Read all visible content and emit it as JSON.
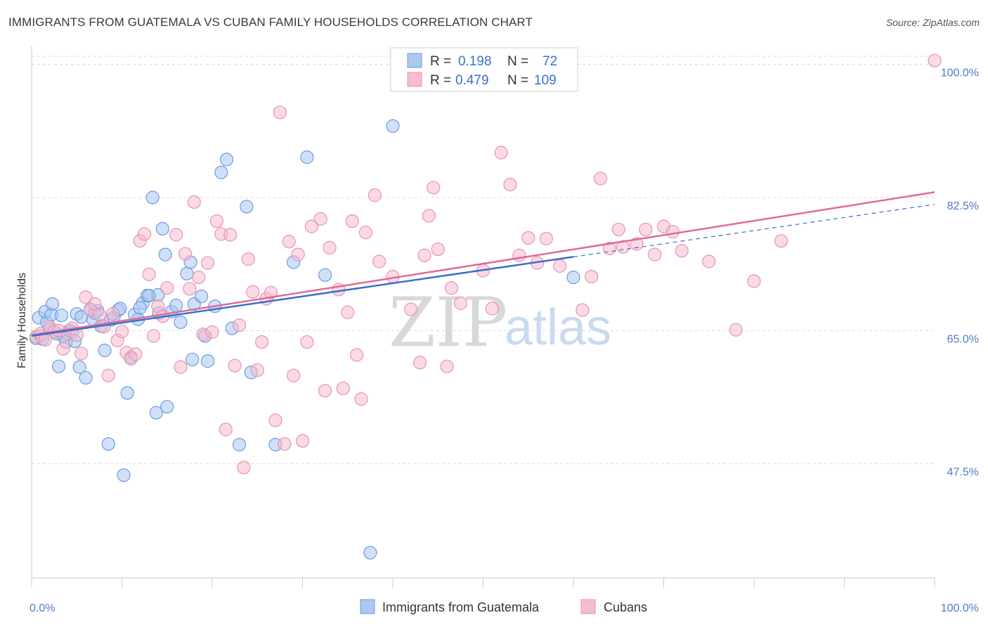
{
  "title": "IMMIGRANTS FROM GUATEMALA VS CUBAN FAMILY HOUSEHOLDS CORRELATION CHART",
  "source": "Source: ZipAtlas.com",
  "watermark": {
    "zip": "ZIP",
    "atlas": "atlas"
  },
  "colors": {
    "blue_fill": "#aac8f0",
    "blue_stroke": "#6b9be0",
    "blue_line": "#3a6fc9",
    "pink_fill": "#f6bcd0",
    "pink_stroke": "#e992b0",
    "pink_line": "#e06a95",
    "grid": "#d8d8d8",
    "tick_label": "#4a7cc9"
  },
  "legend": {
    "r_label": "R =",
    "n_label": "N =",
    "series": [
      {
        "r": "0.198",
        "n": "72",
        "color": "blue"
      },
      {
        "r": "0.479",
        "n": "109",
        "color": "pink"
      }
    ]
  },
  "chart_data": {
    "type": "scatter",
    "title": "IMMIGRANTS FROM GUATEMALA VS CUBAN FAMILY HOUSEHOLDS CORRELATION CHART",
    "xlabel": "",
    "ylabel": "Family Households",
    "xlim": [
      0,
      100
    ],
    "ylim": [
      32.5,
      102
    ],
    "x_ticks_labels": [
      "0.0%",
      "100.0%"
    ],
    "y_ticks": [
      47.5,
      65.0,
      82.5,
      100.0
    ],
    "y_tick_labels": [
      "47.5%",
      "65.0%",
      "82.5%",
      "100.0%"
    ],
    "grid": "horizontal dashed",
    "legend_position": "top-center",
    "series": [
      {
        "name": "Immigrants from Guatemala",
        "color": "blue",
        "trend": {
          "x0": 0,
          "y0": 64.3,
          "x1": 60,
          "y1": 74.7,
          "dash_to": [
            100,
            81.6
          ]
        },
        "points": [
          [
            0.5,
            64.0
          ],
          [
            0.8,
            66.7
          ],
          [
            1.0,
            64.3
          ],
          [
            1.2,
            63.9
          ],
          [
            1.5,
            67.5
          ],
          [
            1.7,
            66.1
          ],
          [
            2.0,
            65.2
          ],
          [
            2.2,
            67.1
          ],
          [
            2.3,
            68.5
          ],
          [
            2.8,
            64.6
          ],
          [
            3.0,
            60.3
          ],
          [
            3.3,
            67.0
          ],
          [
            3.5,
            64.3
          ],
          [
            3.8,
            63.5
          ],
          [
            4.2,
            65.0
          ],
          [
            4.5,
            64.8
          ],
          [
            4.8,
            63.6
          ],
          [
            5.0,
            67.2
          ],
          [
            5.3,
            60.2
          ],
          [
            5.5,
            66.8
          ],
          [
            6.0,
            58.8
          ],
          [
            6.8,
            66.5
          ],
          [
            7.3,
            67.6
          ],
          [
            7.7,
            65.6
          ],
          [
            8.1,
            62.4
          ],
          [
            8.5,
            50.1
          ],
          [
            8.8,
            66.4
          ],
          [
            9.1,
            66.7
          ],
          [
            9.6,
            67.7
          ],
          [
            10.2,
            46.0
          ],
          [
            10.6,
            56.8
          ],
          [
            11.0,
            61.5
          ],
          [
            11.4,
            67.1
          ],
          [
            12.3,
            68.6
          ],
          [
            12.8,
            69.6
          ],
          [
            13.4,
            82.5
          ],
          [
            13.8,
            54.2
          ],
          [
            14.1,
            67.3
          ],
          [
            14.5,
            78.4
          ],
          [
            15.0,
            55.0
          ],
          [
            16.5,
            66.1
          ],
          [
            17.2,
            72.5
          ],
          [
            17.6,
            74.0
          ],
          [
            18.0,
            68.5
          ],
          [
            18.8,
            69.5
          ],
          [
            19.2,
            64.3
          ],
          [
            19.5,
            61.0
          ],
          [
            20.3,
            68.2
          ],
          [
            21.0,
            85.8
          ],
          [
            21.6,
            87.5
          ],
          [
            22.2,
            65.3
          ],
          [
            23.0,
            50.0
          ],
          [
            23.8,
            81.3
          ],
          [
            24.3,
            59.5
          ],
          [
            27.0,
            50.0
          ],
          [
            29.0,
            74.0
          ],
          [
            30.5,
            87.8
          ],
          [
            32.5,
            72.3
          ],
          [
            37.5,
            35.8
          ],
          [
            40.0,
            91.9
          ],
          [
            60.0,
            72.0
          ],
          [
            14.0,
            69.7
          ],
          [
            13.0,
            69.6
          ],
          [
            15.5,
            67.5
          ],
          [
            16.0,
            68.3
          ],
          [
            6.5,
            67.8
          ],
          [
            7.0,
            67.3
          ],
          [
            11.8,
            66.5
          ],
          [
            12.0,
            68.0
          ],
          [
            9.8,
            67.9
          ],
          [
            14.8,
            75.0
          ],
          [
            17.8,
            61.2
          ]
        ]
      },
      {
        "name": "Cubans",
        "color": "pink",
        "trend": {
          "x0": 0,
          "y0": 64.4,
          "x1": 100,
          "y1": 83.2
        },
        "points": [
          [
            0.5,
            64.2
          ],
          [
            1.0,
            64.6
          ],
          [
            1.5,
            63.8
          ],
          [
            2.0,
            65.5
          ],
          [
            2.5,
            64.9
          ],
          [
            3.0,
            65.0
          ],
          [
            3.5,
            62.6
          ],
          [
            4.0,
            64.6
          ],
          [
            4.5,
            65.3
          ],
          [
            5.0,
            64.4
          ],
          [
            5.5,
            62.0
          ],
          [
            6.0,
            69.4
          ],
          [
            6.5,
            67.7
          ],
          [
            7.0,
            68.5
          ],
          [
            7.5,
            67.1
          ],
          [
            8.0,
            65.5
          ],
          [
            8.5,
            59.1
          ],
          [
            9.0,
            67.2
          ],
          [
            9.5,
            63.7
          ],
          [
            10.0,
            64.9
          ],
          [
            10.5,
            62.1
          ],
          [
            11.0,
            61.3
          ],
          [
            11.5,
            61.9
          ],
          [
            12.0,
            76.8
          ],
          [
            12.5,
            77.7
          ],
          [
            13.0,
            72.4
          ],
          [
            13.5,
            64.3
          ],
          [
            14.0,
            68.2
          ],
          [
            14.5,
            66.9
          ],
          [
            15.0,
            70.6
          ],
          [
            16.0,
            77.6
          ],
          [
            16.5,
            60.2
          ],
          [
            17.0,
            75.1
          ],
          [
            17.5,
            70.5
          ],
          [
            18.0,
            81.9
          ],
          [
            18.5,
            72.0
          ],
          [
            19.0,
            64.5
          ],
          [
            19.5,
            73.9
          ],
          [
            20.0,
            64.8
          ],
          [
            20.5,
            79.4
          ],
          [
            21.0,
            77.7
          ],
          [
            21.5,
            52.0
          ],
          [
            22.0,
            77.6
          ],
          [
            22.5,
            60.4
          ],
          [
            23.0,
            65.7
          ],
          [
            23.5,
            47.0
          ],
          [
            24.0,
            74.4
          ],
          [
            24.5,
            70.1
          ],
          [
            25.0,
            59.8
          ],
          [
            25.5,
            63.5
          ],
          [
            26.0,
            69.2
          ],
          [
            26.5,
            70.0
          ],
          [
            27.0,
            53.2
          ],
          [
            27.5,
            93.7
          ],
          [
            28.0,
            50.1
          ],
          [
            28.5,
            76.7
          ],
          [
            29.0,
            59.1
          ],
          [
            29.5,
            75.0
          ],
          [
            30.0,
            50.5
          ],
          [
            30.5,
            63.5
          ],
          [
            31.0,
            78.7
          ],
          [
            32.0,
            79.7
          ],
          [
            32.5,
            57.1
          ],
          [
            33.0,
            75.9
          ],
          [
            34.0,
            70.4
          ],
          [
            34.5,
            57.4
          ],
          [
            35.0,
            67.4
          ],
          [
            35.5,
            79.4
          ],
          [
            36.0,
            61.8
          ],
          [
            36.5,
            56.0
          ],
          [
            37.0,
            77.9
          ],
          [
            38.0,
            82.8
          ],
          [
            38.5,
            74.1
          ],
          [
            40.0,
            72.1
          ],
          [
            42.0,
            67.8
          ],
          [
            43.0,
            60.8
          ],
          [
            43.5,
            74.9
          ],
          [
            44.0,
            80.1
          ],
          [
            44.5,
            83.8
          ],
          [
            45.0,
            75.7
          ],
          [
            46.0,
            60.3
          ],
          [
            46.5,
            70.6
          ],
          [
            47.5,
            68.6
          ],
          [
            50.0,
            72.9
          ],
          [
            51.0,
            67.9
          ],
          [
            52.0,
            88.4
          ],
          [
            53.0,
            84.2
          ],
          [
            54.0,
            74.9
          ],
          [
            55.0,
            77.2
          ],
          [
            56.0,
            73.9
          ],
          [
            57.0,
            77.1
          ],
          [
            58.5,
            73.5
          ],
          [
            61.0,
            67.7
          ],
          [
            62.0,
            72.1
          ],
          [
            63.0,
            85.0
          ],
          [
            65.5,
            76.0
          ],
          [
            64.0,
            75.8
          ],
          [
            65.0,
            78.3
          ],
          [
            67.0,
            76.4
          ],
          [
            68.0,
            78.3
          ],
          [
            70.0,
            78.7
          ],
          [
            71.0,
            78.0
          ],
          [
            72.0,
            75.5
          ],
          [
            75.0,
            74.1
          ],
          [
            78.0,
            65.1
          ],
          [
            80.0,
            71.5
          ],
          [
            83.0,
            76.8
          ],
          [
            100.0,
            100.5
          ],
          [
            69.0,
            75.0
          ]
        ]
      }
    ]
  },
  "bottom_legend": [
    {
      "label": "Immigrants from Guatemala",
      "color": "blue"
    },
    {
      "label": "Cubans",
      "color": "pink"
    }
  ]
}
